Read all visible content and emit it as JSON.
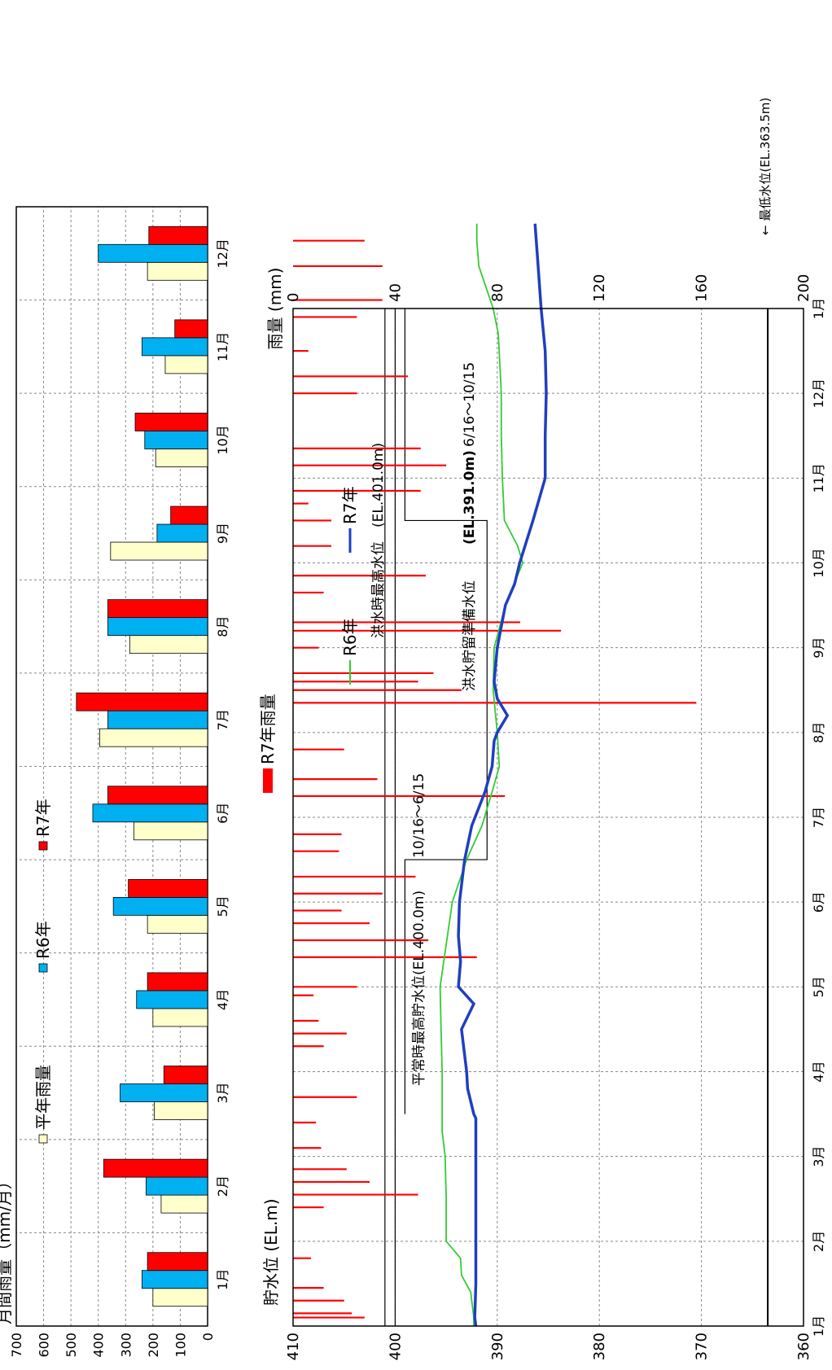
{
  "chart_data": [
    {
      "type": "bar",
      "ylabel": "月間雨量（mm/月）",
      "ylim": [
        0,
        700
      ],
      "yticks": [
        0,
        100,
        200,
        300,
        400,
        500,
        600,
        700
      ],
      "categories": [
        "1月",
        "2月",
        "3月",
        "4月",
        "5月",
        "6月",
        "7月",
        "8月",
        "9月",
        "10月",
        "11月",
        "12月"
      ],
      "series": [
        {
          "name": "平年雨量",
          "color": "#ffffcc",
          "values": [
            200,
            170,
            195,
            200,
            220,
            270,
            395,
            285,
            355,
            190,
            155,
            220
          ]
        },
        {
          "name": "R6年",
          "color": "#00b0f0",
          "values": [
            240,
            225,
            320,
            260,
            345,
            420,
            365,
            365,
            185,
            230,
            240,
            400
          ]
        },
        {
          "name": "R7年",
          "color": "#ff0000",
          "values": [
            220,
            380,
            160,
            220,
            290,
            365,
            480,
            365,
            135,
            265,
            120,
            215
          ]
        }
      ]
    },
    {
      "type": "line",
      "ylabel_left": "貯水位 (EL.m)",
      "ylabel_right": "雨量 (mm)",
      "y_left_lim": [
        360,
        410
      ],
      "y_left_ticks": [
        360,
        370,
        380,
        390,
        400,
        410
      ],
      "y_right_lim": [
        0,
        200
      ],
      "y_right_ticks": [
        0,
        40,
        80,
        120,
        160,
        200
      ],
      "x_ticks": [
        "1月",
        "2月",
        "3月",
        "4月",
        "5月",
        "6月",
        "7月",
        "8月",
        "9月",
        "10月",
        "11月",
        "12月",
        "1月"
      ],
      "legend": [
        "R7年雨量",
        "R6年",
        "R7年"
      ],
      "series": [
        {
          "name": "R6年",
          "color": "#33cc33",
          "points": [
            [
              0,
              392.3
            ],
            [
              0.1,
              392.3
            ],
            [
              0.4,
              392.6
            ],
            [
              0.6,
              393.5
            ],
            [
              0.8,
              393.6
            ],
            [
              1.0,
              395.0
            ],
            [
              1.5,
              395.0
            ],
            [
              2.0,
              395.1
            ],
            [
              2.3,
              395.4
            ],
            [
              2.6,
              395.4
            ],
            [
              3.0,
              395.4
            ],
            [
              3.5,
              395.5
            ],
            [
              4.0,
              395.6
            ],
            [
              4.5,
              395.0
            ],
            [
              5.0,
              394.4
            ],
            [
              5.5,
              393.0
            ],
            [
              5.9,
              391.5
            ],
            [
              6.3,
              390.5
            ],
            [
              6.6,
              389.8
            ],
            [
              7.0,
              390.0
            ],
            [
              7.5,
              390.4
            ],
            [
              8.0,
              390.3
            ],
            [
              8.5,
              389.2
            ],
            [
              9.0,
              387.5
            ],
            [
              9.2,
              388.0
            ],
            [
              9.5,
              389.3
            ],
            [
              10.0,
              389.5
            ],
            [
              10.5,
              389.6
            ],
            [
              11.0,
              389.6
            ],
            [
              11.7,
              389.9
            ],
            [
              12.0,
              390.4
            ],
            [
              12.5,
              391.8
            ],
            [
              12.8,
              392.0
            ],
            [
              13.0,
              392.0
            ]
          ]
        },
        {
          "name": "R7年",
          "color": "#1f3fbf",
          "points": [
            [
              0,
              392.1
            ],
            [
              0.1,
              392.2
            ],
            [
              0.5,
              392.1
            ],
            [
              1.0,
              392.1
            ],
            [
              2.0,
              392.1
            ],
            [
              2.45,
              392.1
            ],
            [
              2.5,
              392.3
            ],
            [
              2.8,
              392.9
            ],
            [
              3.0,
              393.0
            ],
            [
              3.5,
              393.5
            ],
            [
              3.8,
              392.3
            ],
            [
              4.0,
              393.8
            ],
            [
              4.3,
              393.6
            ],
            [
              4.6,
              393.8
            ],
            [
              5.0,
              393.7
            ],
            [
              5.5,
              393.2
            ],
            [
              5.9,
              392.5
            ],
            [
              6.3,
              391.2
            ],
            [
              6.6,
              390.5
            ],
            [
              6.9,
              390.3
            ],
            [
              7.0,
              390.0
            ],
            [
              7.2,
              389.0
            ],
            [
              7.4,
              390.0
            ],
            [
              7.6,
              390.3
            ],
            [
              8.0,
              390.0
            ],
            [
              8.5,
              389.2
            ],
            [
              8.75,
              388.3
            ],
            [
              9.0,
              387.8
            ],
            [
              9.5,
              386.5
            ],
            [
              10.0,
              385.3
            ],
            [
              10.5,
              385.3
            ],
            [
              11.0,
              385.2
            ],
            [
              11.5,
              385.3
            ],
            [
              12.0,
              385.7
            ],
            [
              12.5,
              386.0
            ],
            [
              13.0,
              386.3
            ]
          ]
        }
      ],
      "rainfall_r7": {
        "name": "R7年雨量",
        "color": "#ff0000",
        "events": [
          [
            0.1,
            28
          ],
          [
            0.15,
            23
          ],
          [
            0.3,
            20
          ],
          [
            0.45,
            12
          ],
          [
            0.8,
            7
          ],
          [
            1.4,
            12
          ],
          [
            1.55,
            49
          ],
          [
            1.7,
            30
          ],
          [
            1.85,
            21
          ],
          [
            2.1,
            11
          ],
          [
            2.4,
            9
          ],
          [
            2.7,
            25
          ],
          [
            3.3,
            12
          ],
          [
            3.45,
            21
          ],
          [
            3.6,
            10
          ],
          [
            3.9,
            8
          ],
          [
            4.0,
            25
          ],
          [
            4.35,
            72
          ],
          [
            4.55,
            53
          ],
          [
            4.75,
            30
          ],
          [
            4.9,
            19
          ],
          [
            5.1,
            35
          ],
          [
            5.3,
            48
          ],
          [
            5.6,
            18
          ],
          [
            5.8,
            19
          ],
          [
            6.25,
            83
          ],
          [
            6.45,
            33
          ],
          [
            6.8,
            20
          ],
          [
            7.35,
            158
          ],
          [
            7.5,
            66
          ],
          [
            7.6,
            49
          ],
          [
            7.7,
            55
          ],
          [
            8.0,
            10
          ],
          [
            8.2,
            105
          ],
          [
            8.3,
            89
          ],
          [
            8.65,
            12
          ],
          [
            8.85,
            52
          ],
          [
            9.2,
            15
          ],
          [
            9.5,
            15
          ],
          [
            9.7,
            6
          ],
          [
            9.85,
            50
          ],
          [
            10.15,
            60
          ],
          [
            10.35,
            50
          ],
          [
            11.0,
            25
          ],
          [
            11.2,
            45
          ],
          [
            11.5,
            6
          ],
          [
            11.9,
            25
          ],
          [
            12.1,
            35
          ],
          [
            12.5,
            35
          ],
          [
            12.8,
            28
          ]
        ]
      },
      "reference_lines": [
        {
          "label": "洪水時最高水位",
          "label_value": "(EL.401.0m)",
          "value": 401.0
        },
        {
          "label": "平常時最高貯水位(EL.400.0m)",
          "label_value": "10/16～6/15",
          "value": 400.0
        },
        {
          "label": "洪水貯留準備水位",
          "label_value": "(EL.391.0m)",
          "period": "6/16～10/15",
          "value": 391.0
        },
        {
          "label": "最低水位(EL.363.5m)",
          "value": 363.5
        }
      ]
    }
  ]
}
